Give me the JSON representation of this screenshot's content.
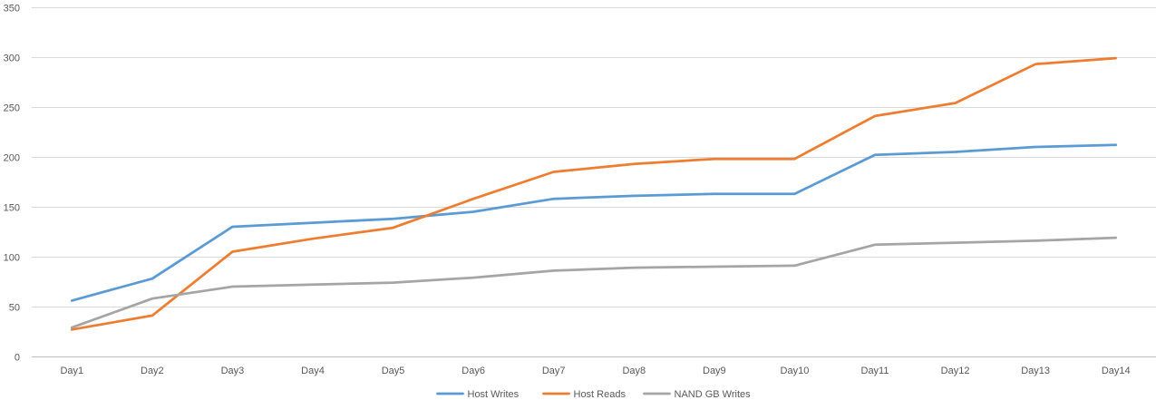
{
  "chart_data": {
    "type": "line",
    "title": "",
    "xlabel": "",
    "ylabel": "",
    "categories": [
      "Day1",
      "Day2",
      "Day3",
      "Day4",
      "Day5",
      "Day6",
      "Day7",
      "Day8",
      "Day9",
      "Day10",
      "Day11",
      "Day12",
      "Day13",
      "Day14"
    ],
    "ylim": [
      0,
      350
    ],
    "yticks": [
      0,
      50,
      100,
      150,
      200,
      250,
      300,
      350
    ],
    "grid": true,
    "legend_position": "bottom",
    "series": [
      {
        "name": "Host Writes",
        "color": "#5b9bd5",
        "values": [
          56,
          78,
          130,
          134,
          138,
          145,
          158,
          161,
          163,
          163,
          202,
          205,
          210,
          212
        ]
      },
      {
        "name": "Host Reads",
        "color": "#ed7d31",
        "values": [
          27,
          41,
          105,
          118,
          129,
          158,
          185,
          193,
          198,
          198,
          241,
          254,
          293,
          299
        ]
      },
      {
        "name": "NAND GB Writes",
        "color": "#a5a5a5",
        "values": [
          29,
          58,
          70,
          72,
          74,
          79,
          86,
          89,
          90,
          91,
          112,
          114,
          116,
          119
        ]
      }
    ]
  }
}
